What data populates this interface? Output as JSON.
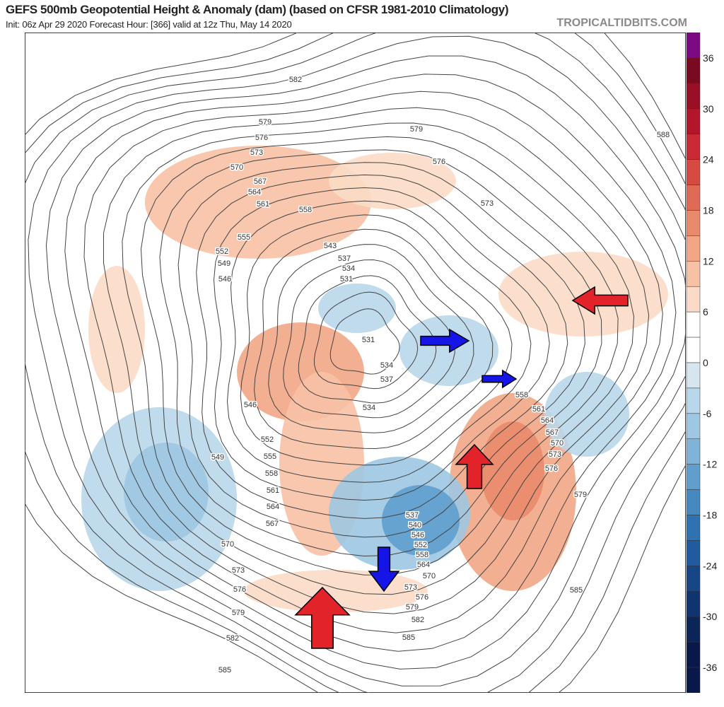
{
  "header": {
    "title": "GEFS 500mb Geopotential Height & Anomaly (dam) (based on CFSR 1981-2010 Climatology)",
    "subtitle": "Init: 06z Apr 29 2020   Forecast Hour: [366]   valid at 12z Thu, May 14 2020",
    "brand": "TROPICALTIDBITS.COM"
  },
  "colorbar": {
    "unit": "dam",
    "ticks": [
      "36",
      "30",
      "24",
      "18",
      "12",
      "6",
      "0",
      "-6",
      "-12",
      "-18",
      "-24",
      "-30",
      "-36"
    ],
    "colors": [
      "#7b0a83",
      "#7a0a1f",
      "#9a0f25",
      "#b3162b",
      "#c92a33",
      "#d64a42",
      "#e06a55",
      "#ea8a6c",
      "#f2a686",
      "#f7c1a5",
      "#fbdbc7",
      "#ffffff",
      "#ffffff",
      "#d5e6f1",
      "#b9d7ea",
      "#9dc7e2",
      "#7fb4d8",
      "#609fcd",
      "#4589c0",
      "#2f72b1",
      "#1f5b9e",
      "#174687",
      "#103470",
      "#0b2558",
      "#08184a"
    ]
  },
  "contour_labels": [
    "582",
    "579",
    "576",
    "573",
    "570",
    "567",
    "564",
    "561",
    "558",
    "555",
    "552",
    "549",
    "546",
    "543",
    "537",
    "534",
    "531",
    "531",
    "534",
    "537",
    "579",
    "576",
    "573",
    "588",
    "546",
    "549",
    "552",
    "555",
    "558",
    "561",
    "564",
    "567",
    "570",
    "573",
    "576",
    "579",
    "582",
    "585",
    "558",
    "561",
    "564",
    "567",
    "570",
    "573",
    "576",
    "579",
    "585",
    "537",
    "540",
    "546",
    "552",
    "558",
    "564",
    "570",
    "573",
    "576",
    "579",
    "582",
    "585",
    "534"
  ],
  "annotations": {
    "arrows": [
      {
        "color": "#e3232a",
        "direction": "up",
        "region": "western United States"
      },
      {
        "color": "#e3232a",
        "direction": "up",
        "region": "Greenland / North Atlantic"
      },
      {
        "color": "#e3232a",
        "direction": "left",
        "region": "western Russia"
      },
      {
        "color": "#1515e8",
        "direction": "right",
        "region": "Arctic / Scandinavia"
      },
      {
        "color": "#1515e8",
        "direction": "right",
        "region": "Scandinavia"
      },
      {
        "color": "#1515e8",
        "direction": "down",
        "region": "eastern United States"
      }
    ]
  }
}
